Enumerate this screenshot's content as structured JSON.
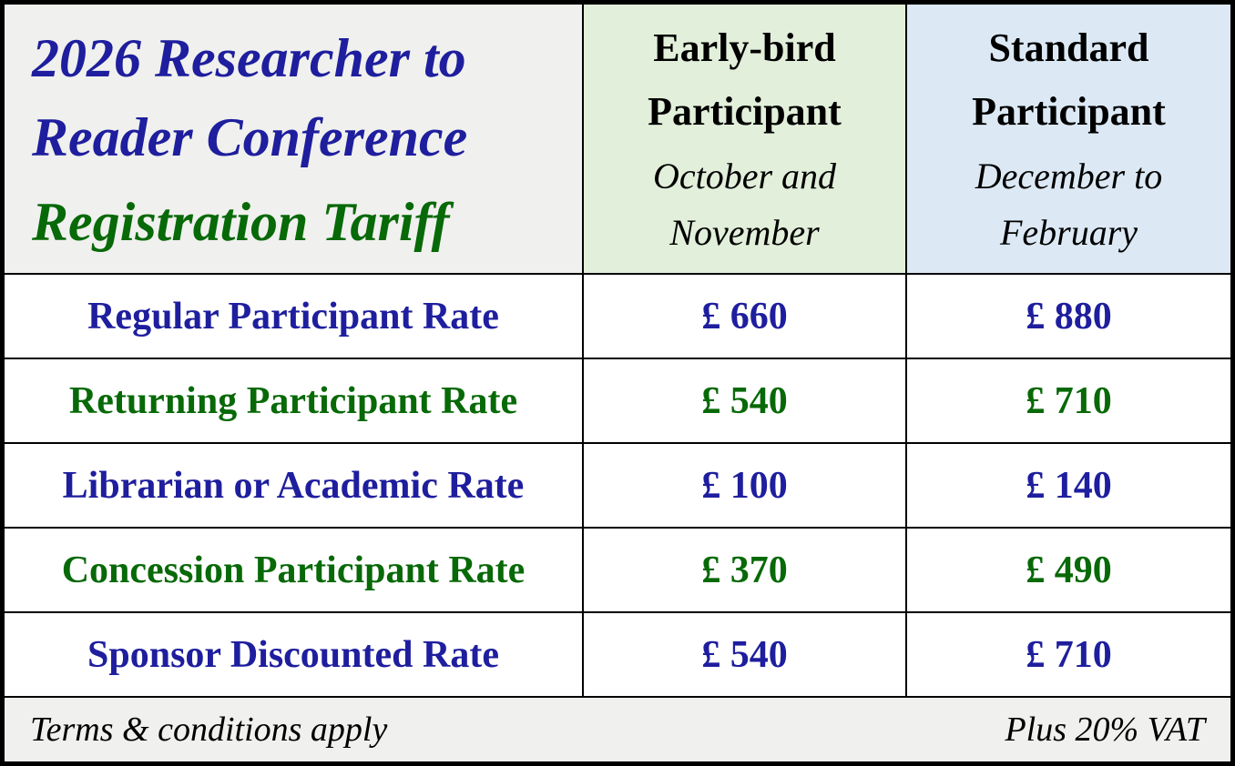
{
  "header": {
    "title_main": "2026 Researcher to Reader Conference",
    "title_sub": "Registration Tariff",
    "columns": [
      {
        "label": "Early-bird Participant",
        "period": "October and November"
      },
      {
        "label": "Standard Participant",
        "period": "December to February"
      }
    ]
  },
  "rows": [
    {
      "label": "Regular Participant Rate",
      "early_bird": "£ 660",
      "standard": "£ 880",
      "color": "blue"
    },
    {
      "label": "Returning Participant Rate",
      "early_bird": "£ 540",
      "standard": "£ 710",
      "color": "green"
    },
    {
      "label": "Librarian or Academic Rate",
      "early_bird": "£ 100",
      "standard": "£ 140",
      "color": "blue"
    },
    {
      "label": "Concession Participant Rate",
      "early_bird": "£ 370",
      "standard": "£ 490",
      "color": "green"
    },
    {
      "label": "Sponsor Discounted Rate",
      "early_bird": "£ 540",
      "standard": "£ 710",
      "color": "blue"
    }
  ],
  "footer": {
    "left": "Terms & conditions apply",
    "right": "Plus 20% VAT"
  },
  "colors": {
    "blue_text": "#1E1E9E",
    "green_text": "#076907",
    "early_bird_header_bg": "#E2EFDA",
    "standard_header_bg": "#DCE9F5",
    "neutral_bg": "#F0F0EE",
    "grid_line": "#000000"
  }
}
